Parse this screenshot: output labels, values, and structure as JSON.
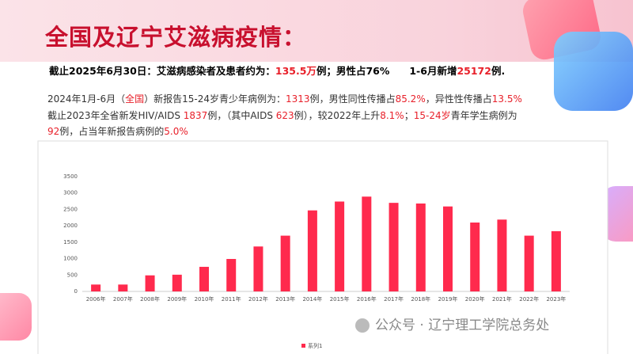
{
  "title": "全国及辽宁艾滋病疫情：",
  "headline": [
    {
      "text": "截止2025年6月30日：艾滋病感染者及患者约为："
    },
    {
      "text": "135.5万",
      "color": "#e8202a"
    },
    {
      "text": "例；男性占76%　　1-6月新增"
    },
    {
      "text": "25172",
      "color": "#e8202a"
    },
    {
      "text": "例."
    }
  ],
  "paragraph": [
    [
      {
        "text": "2024年1月-6月（"
      },
      {
        "text": "全国",
        "color": "#e8202a"
      },
      {
        "text": "）新报告15-24岁青少年病例为："
      },
      {
        "text": "1313",
        "color": "#e8202a"
      },
      {
        "text": "例，男性同性传播占"
      },
      {
        "text": "85.2%",
        "color": "#e8202a"
      },
      {
        "text": "，异性性传播占"
      },
      {
        "text": "13.5%",
        "color": "#e8202a"
      }
    ],
    [
      {
        "text": "截止2023年全省新发HIV/AIDS "
      },
      {
        "text": "1837",
        "color": "#e8202a"
      },
      {
        "text": "例，（其中AIDS "
      },
      {
        "text": "623",
        "color": "#e8202a"
      },
      {
        "text": "例），较2022年上升"
      },
      {
        "text": "8.1%",
        "color": "#e8202a"
      },
      {
        "text": "；"
      },
      {
        "text": "15-24岁",
        "color": "#e8202a"
      },
      {
        "text": "青年学生病例为"
      }
    ],
    [
      {
        "text": "92",
        "color": "#e8202a"
      },
      {
        "text": "例，占当年新报告病例的"
      },
      {
        "text": "5.0%",
        "color": "#e8202a"
      }
    ]
  ],
  "watermark": "公众号 · 辽宁理工学院总务处",
  "chart_data": {
    "type": "bar",
    "categories": [
      "2006年",
      "2007年",
      "2008年",
      "2009年",
      "2010年",
      "2011年",
      "2012年",
      "2013年",
      "2014年",
      "2015年",
      "2016年",
      "2017年",
      "2018年",
      "2019年",
      "2020年",
      "2021年",
      "2022年",
      "2023年"
    ],
    "series": [
      {
        "name": "系列1",
        "color": "#ff2a4d",
        "values": [
          210,
          210,
          490,
          510,
          750,
          990,
          1370,
          1700,
          2470,
          2740,
          2890,
          2700,
          2680,
          2590,
          2100,
          2190,
          1700,
          1837
        ]
      }
    ],
    "ylim": [
      0,
      3500
    ],
    "yticks": [
      0,
      500,
      1000,
      1500,
      2000,
      2500,
      3000,
      3500
    ],
    "grid": false,
    "legend": "bottom"
  }
}
